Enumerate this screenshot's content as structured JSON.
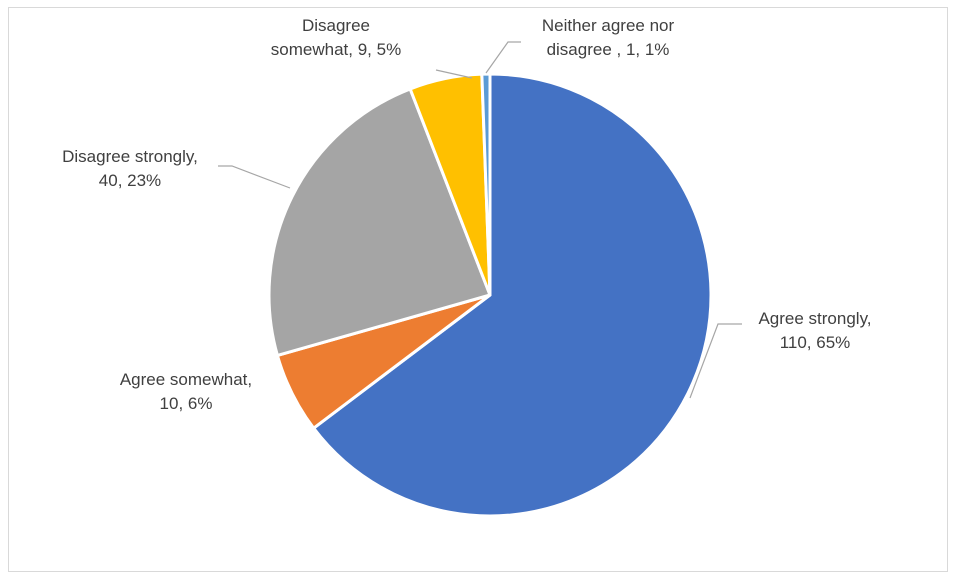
{
  "chart_data": {
    "type": "pie",
    "title": "",
    "legend": "none",
    "slices": [
      {
        "name": "Agree strongly",
        "value": 110,
        "percent": "65%",
        "color": "#4472C4",
        "label_lines": [
          "Agree strongly,",
          "110, 65%"
        ]
      },
      {
        "name": "Agree somewhat",
        "value": 10,
        "percent": "6%",
        "color": "#ED7D31",
        "label_lines": [
          "Agree somewhat,",
          "10, 6%"
        ]
      },
      {
        "name": "Disagree strongly",
        "value": 40,
        "percent": "23%",
        "color": "#A5A5A5",
        "label_lines": [
          "Disagree strongly,",
          "40, 23%"
        ]
      },
      {
        "name": "Disagree somewhat",
        "value": 9,
        "percent": "5%",
        "color": "#FFC000",
        "label_lines": [
          "Disagree",
          "somewhat, 9, 5%"
        ]
      },
      {
        "name": "Neither agree nor disagree ",
        "value": 1,
        "percent": "1%",
        "color": "#5B9BD5",
        "label_lines": [
          "Neither agree nor",
          "disagree , 1, 1%"
        ]
      }
    ]
  }
}
